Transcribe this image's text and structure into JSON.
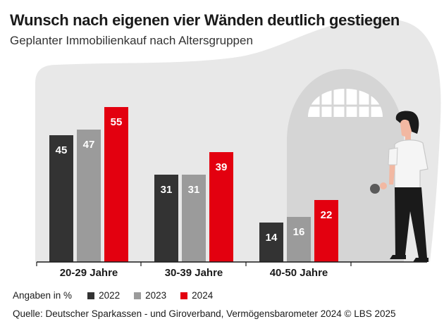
{
  "title": "Wunsch nach eigenen vier Wänden deutlich gestiegen",
  "subtitle": "Geplanter Immobilienkauf nach Altersgruppen",
  "unit_note": "Angaben in %",
  "source": "Quelle: Deutscher Sparkassen - und Giroverband, Vermögensbarometer 2024  © LBS 2025",
  "colors": {
    "2022": "#333333",
    "2023": "#9b9b9b",
    "2024": "#e3000f",
    "backdrop": "#e8e8e8"
  },
  "legend": [
    {
      "label": "2022",
      "color": "#333333"
    },
    {
      "label": "2023",
      "color": "#9b9b9b"
    },
    {
      "label": "2024",
      "color": "#e3000f"
    }
  ],
  "chart_data": {
    "type": "bar",
    "categories": [
      "20-29 Jahre",
      "30-39 Jahre",
      "40-50 Jahre"
    ],
    "series": [
      {
        "name": "2022",
        "values": [
          45,
          31,
          14
        ]
      },
      {
        "name": "2023",
        "values": [
          47,
          31,
          16
        ]
      },
      {
        "name": "2024",
        "values": [
          55,
          39,
          22
        ]
      }
    ],
    "ylim": [
      0,
      60
    ],
    "grid": false,
    "data_labels": true,
    "legend_position": "bottom"
  }
}
